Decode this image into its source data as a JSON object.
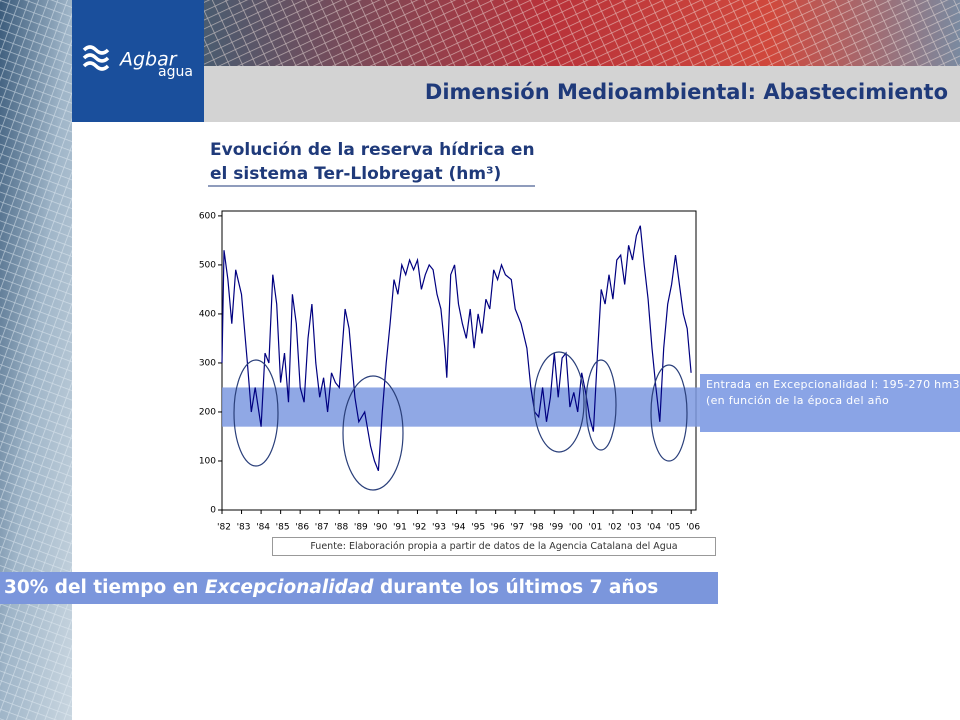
{
  "header": {
    "title": "Dimensión Medioambiental: Abastecimiento",
    "logo": [
      "Agbar",
      "agua"
    ]
  },
  "chart_data": {
    "type": "line",
    "title": [
      "Evolución de la reserva hídrica en",
      "el sistema Ter-Llobregat (hm³)"
    ],
    "xlim": [
      1982,
      2006.25
    ],
    "xticks": [
      {
        "value": 1982,
        "label": "'82"
      },
      {
        "value": 1983,
        "label": "'83"
      },
      {
        "value": 1984,
        "label": "'84"
      },
      {
        "value": 1985,
        "label": "'85"
      },
      {
        "value": 1986,
        "label": "'86"
      },
      {
        "value": 1987,
        "label": "'87"
      },
      {
        "value": 1988,
        "label": "'88"
      },
      {
        "value": 1989,
        "label": "'89"
      },
      {
        "value": 1990,
        "label": "'90"
      },
      {
        "value": 1991,
        "label": "'91"
      },
      {
        "value": 1992,
        "label": "'92"
      },
      {
        "value": 1993,
        "label": "'93"
      },
      {
        "value": 1994,
        "label": "'94"
      },
      {
        "value": 1995,
        "label": "'95"
      },
      {
        "value": 1996,
        "label": "'96"
      },
      {
        "value": 1997,
        "label": "'97"
      },
      {
        "value": 1998,
        "label": "'98"
      },
      {
        "value": 1999,
        "label": "'99"
      },
      {
        "value": 2000,
        "label": "'00"
      },
      {
        "value": 2001,
        "label": "'01"
      },
      {
        "value": 2002,
        "label": "'02"
      },
      {
        "value": 2003,
        "label": "'03"
      },
      {
        "value": 2004,
        "label": "'04"
      },
      {
        "value": 2005,
        "label": "'05"
      },
      {
        "value": 2006,
        "label": "'06"
      }
    ],
    "ylim": [
      0,
      610
    ],
    "yticks": [
      0,
      100,
      200,
      300,
      400,
      500,
      600
    ],
    "band": [
      170,
      250
    ],
    "band_color": "#7d99e0",
    "series": [
      {
        "color": "#000080",
        "x": [
          1982.0,
          1982.1,
          1982.3,
          1982.5,
          1982.7,
          1983.0,
          1983.3,
          1983.5,
          1983.7,
          1984.0,
          1984.2,
          1984.4,
          1984.6,
          1984.8,
          1985.0,
          1985.2,
          1985.4,
          1985.6,
          1985.8,
          1986.0,
          1986.2,
          1986.4,
          1986.6,
          1986.8,
          1987.0,
          1987.2,
          1987.4,
          1987.6,
          1987.8,
          1988.0,
          1988.3,
          1988.5,
          1988.8,
          1989.0,
          1989.3,
          1989.6,
          1989.8,
          1990.0,
          1990.2,
          1990.4,
          1990.6,
          1990.8,
          1991.0,
          1991.2,
          1991.4,
          1991.6,
          1991.8,
          1992.0,
          1992.2,
          1992.4,
          1992.6,
          1992.8,
          1993.0,
          1993.2,
          1993.4,
          1993.5,
          1993.7,
          1993.9,
          1994.1,
          1994.3,
          1994.5,
          1994.7,
          1994.9,
          1995.1,
          1995.3,
          1995.5,
          1995.7,
          1995.9,
          1996.1,
          1996.3,
          1996.5,
          1996.8,
          1997.0,
          1997.3,
          1997.6,
          1997.8,
          1998.0,
          1998.2,
          1998.4,
          1998.6,
          1998.8,
          1999.0,
          1999.2,
          1999.4,
          1999.6,
          1999.8,
          2000.0,
          2000.2,
          2000.4,
          2000.6,
          2000.8,
          2001.0,
          2001.2,
          2001.4,
          2001.6,
          2001.8,
          2002.0,
          2002.2,
          2002.4,
          2002.6,
          2002.8,
          2003.0,
          2003.2,
          2003.4,
          2003.6,
          2003.8,
          2004.0,
          2004.2,
          2004.4,
          2004.6,
          2004.8,
          2005.0,
          2005.2,
          2005.4,
          2005.6,
          2005.8,
          2006.0
        ],
        "values": [
          300,
          530,
          470,
          380,
          490,
          440,
          300,
          200,
          250,
          170,
          320,
          300,
          480,
          420,
          260,
          320,
          220,
          440,
          380,
          250,
          220,
          350,
          420,
          300,
          230,
          270,
          200,
          280,
          260,
          250,
          410,
          370,
          230,
          180,
          200,
          130,
          100,
          80,
          200,
          300,
          380,
          470,
          440,
          500,
          480,
          510,
          490,
          510,
          450,
          480,
          500,
          490,
          440,
          410,
          330,
          270,
          480,
          500,
          420,
          380,
          350,
          410,
          330,
          400,
          360,
          430,
          410,
          490,
          470,
          500,
          480,
          470,
          410,
          380,
          330,
          250,
          200,
          190,
          250,
          180,
          230,
          320,
          230,
          310,
          320,
          210,
          240,
          200,
          280,
          240,
          190,
          160,
          310,
          450,
          420,
          480,
          430,
          510,
          520,
          460,
          540,
          510,
          560,
          580,
          500,
          430,
          330,
          250,
          180,
          330,
          420,
          460,
          520,
          460,
          400,
          370,
          280
        ]
      }
    ],
    "annotation": "Entrada en Excepcionalidad I: 195-270 hm3 (en función de la época del año",
    "source": "Fuente: Elaboración propia a partir de datos de la Agencia Catalana del Agua"
  },
  "banner": [
    "30% del tiempo en ",
    "Excepcionalidad",
    " durante los últimos 7 años"
  ]
}
